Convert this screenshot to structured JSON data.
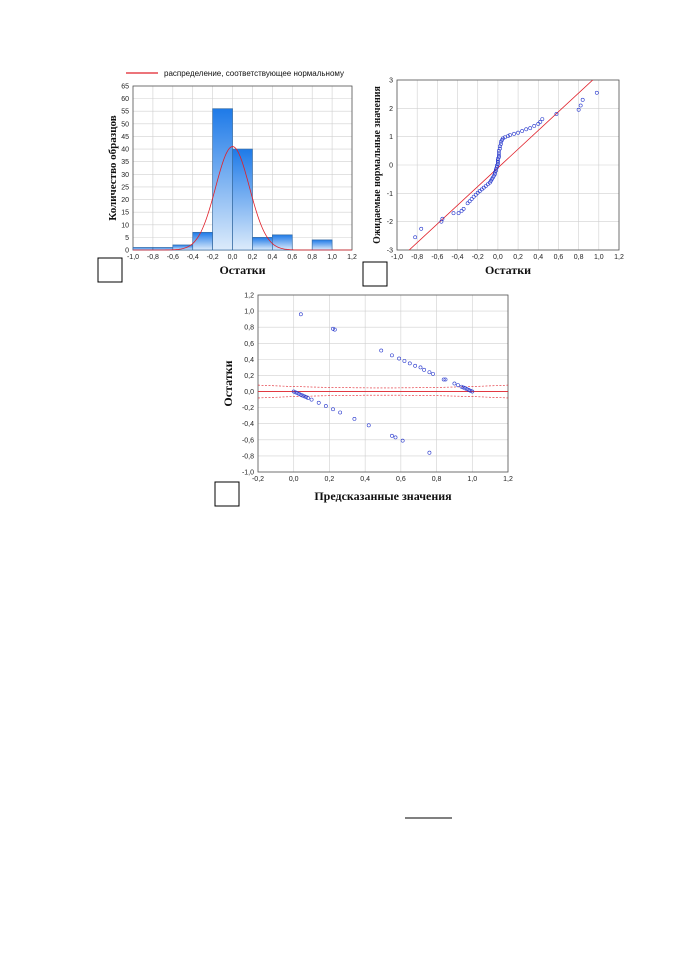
{
  "chart_data": [
    {
      "type": "bar",
      "legend_label": "распределение, соответствующее нормальному",
      "xlabel": "Остатки",
      "ylabel": "Количество образцов",
      "xlim": [
        -1.0,
        1.2
      ],
      "ylim": [
        0,
        65
      ],
      "xticks": [
        "-1,0",
        "-0,8",
        "-0,6",
        "-0,4",
        "-0,2",
        "0,0",
        "0,2",
        "0,4",
        "0,6",
        "0,8",
        "1,0",
        "1,2"
      ],
      "yticks": [
        "0",
        "5",
        "10",
        "15",
        "20",
        "25",
        "30",
        "35",
        "40",
        "45",
        "50",
        "55",
        "60",
        "65"
      ],
      "bins": [
        {
          "from": -1.0,
          "to": -0.8,
          "count": 1
        },
        {
          "from": -0.8,
          "to": -0.6,
          "count": 1
        },
        {
          "from": -0.6,
          "to": -0.4,
          "count": 2
        },
        {
          "from": -0.4,
          "to": -0.2,
          "count": 7
        },
        {
          "from": -0.2,
          "to": 0.0,
          "count": 56
        },
        {
          "from": 0.0,
          "to": 0.2,
          "count": 40
        },
        {
          "from": 0.2,
          "to": 0.4,
          "count": 5
        },
        {
          "from": 0.4,
          "to": 0.6,
          "count": 6
        },
        {
          "from": 0.6,
          "to": 0.8,
          "count": 0
        },
        {
          "from": 0.8,
          "to": 1.0,
          "count": 4
        }
      ],
      "normal_curve": {
        "mean": 0.0,
        "peak": 41,
        "sd": 0.17
      },
      "grid": true
    },
    {
      "type": "scatter",
      "xlabel": "Остатки",
      "ylabel": "Ожидаемые нормальные значения",
      "xlim": [
        -1.0,
        1.2
      ],
      "ylim": [
        -3,
        3
      ],
      "xticks": [
        "-1,0",
        "-0,8",
        "-0,6",
        "-0,4",
        "-0,2",
        "0,0",
        "0,2",
        "0,4",
        "0,6",
        "0,8",
        "1,0",
        "1,2"
      ],
      "yticks": [
        "-3",
        "-2",
        "-1",
        "0",
        "1",
        "2",
        "3"
      ],
      "reference_line": {
        "x1": -1.0,
        "y1": -3.4,
        "x2": 1.0,
        "y2": 3.2
      },
      "points": [
        [
          -0.82,
          -2.55
        ],
        [
          -0.76,
          -2.25
        ],
        [
          -0.56,
          -2.0
        ],
        [
          -0.55,
          -1.9
        ],
        [
          -0.44,
          -1.7
        ],
        [
          -0.39,
          -1.7
        ],
        [
          -0.36,
          -1.62
        ],
        [
          -0.34,
          -1.55
        ],
        [
          -0.3,
          -1.35
        ],
        [
          -0.28,
          -1.28
        ],
        [
          -0.26,
          -1.2
        ],
        [
          -0.24,
          -1.12
        ],
        [
          -0.22,
          -1.05
        ],
        [
          -0.2,
          -0.98
        ],
        [
          -0.18,
          -0.92
        ],
        [
          -0.16,
          -0.86
        ],
        [
          -0.14,
          -0.8
        ],
        [
          -0.12,
          -0.74
        ],
        [
          -0.1,
          -0.68
        ],
        [
          -0.08,
          -0.62
        ],
        [
          -0.07,
          -0.56
        ],
        [
          -0.06,
          -0.5
        ],
        [
          -0.05,
          -0.44
        ],
        [
          -0.04,
          -0.38
        ],
        [
          -0.03,
          -0.32
        ],
        [
          -0.03,
          -0.26
        ],
        [
          -0.02,
          -0.2
        ],
        [
          -0.02,
          -0.14
        ],
        [
          -0.01,
          -0.08
        ],
        [
          -0.01,
          -0.02
        ],
        [
          0.0,
          0.04
        ],
        [
          0.0,
          0.1
        ],
        [
          0.0,
          0.16
        ],
        [
          0.0,
          0.22
        ],
        [
          0.01,
          0.28
        ],
        [
          0.01,
          0.34
        ],
        [
          0.01,
          0.42
        ],
        [
          0.01,
          0.5
        ],
        [
          0.02,
          0.58
        ],
        [
          0.02,
          0.66
        ],
        [
          0.03,
          0.74
        ],
        [
          0.03,
          0.82
        ],
        [
          0.04,
          0.88
        ],
        [
          0.05,
          0.94
        ],
        [
          0.07,
          0.98
        ],
        [
          0.1,
          1.02
        ],
        [
          0.12,
          1.06
        ],
        [
          0.16,
          1.1
        ],
        [
          0.2,
          1.14
        ],
        [
          0.24,
          1.2
        ],
        [
          0.28,
          1.26
        ],
        [
          0.32,
          1.3
        ],
        [
          0.36,
          1.38
        ],
        [
          0.4,
          1.45
        ],
        [
          0.42,
          1.52
        ],
        [
          0.44,
          1.62
        ],
        [
          0.58,
          1.8
        ],
        [
          0.8,
          1.95
        ],
        [
          0.82,
          2.1
        ],
        [
          0.84,
          2.3
        ],
        [
          0.98,
          2.55
        ]
      ],
      "grid": true
    },
    {
      "type": "scatter",
      "xlabel": "Предсказанные значения",
      "ylabel": "Остатки",
      "xlim": [
        -0.2,
        1.2
      ],
      "ylim": [
        -1.0,
        1.2
      ],
      "xticks": [
        "-0,2",
        "0,0",
        "0,2",
        "0,4",
        "0,6",
        "0,8",
        "1,0",
        "1,2"
      ],
      "yticks": [
        "-1,0",
        "-0,8",
        "-0,6",
        "-0,4",
        "-0,2",
        "0,0",
        "0,2",
        "0,4",
        "0,6",
        "0,8",
        "1,0",
        "1,2"
      ],
      "points": [
        [
          0.04,
          0.96
        ],
        [
          0.22,
          0.78
        ],
        [
          0.23,
          0.77
        ],
        [
          0.49,
          0.51
        ],
        [
          0.55,
          0.45
        ],
        [
          0.59,
          0.41
        ],
        [
          0.62,
          0.38
        ],
        [
          0.65,
          0.35
        ],
        [
          0.68,
          0.32
        ],
        [
          0.71,
          0.3
        ],
        [
          0.73,
          0.27
        ],
        [
          0.76,
          0.24
        ],
        [
          0.78,
          0.22
        ],
        [
          0.84,
          0.15
        ],
        [
          0.85,
          0.15
        ],
        [
          0.9,
          0.1
        ],
        [
          0.92,
          0.08
        ],
        [
          0.94,
          0.06
        ],
        [
          0.95,
          0.05
        ],
        [
          0.96,
          0.04
        ],
        [
          0.97,
          0.03
        ],
        [
          0.98,
          0.02
        ],
        [
          0.99,
          0.01
        ],
        [
          1.0,
          0.0
        ],
        [
          0.0,
          0.0
        ],
        [
          0.01,
          -0.01
        ],
        [
          0.02,
          -0.02
        ],
        [
          0.03,
          -0.03
        ],
        [
          0.04,
          -0.04
        ],
        [
          0.05,
          -0.05
        ],
        [
          0.06,
          -0.06
        ],
        [
          0.07,
          -0.07
        ],
        [
          0.08,
          -0.08
        ],
        [
          0.1,
          -0.1
        ],
        [
          0.14,
          -0.14
        ],
        [
          0.18,
          -0.18
        ],
        [
          0.22,
          -0.22
        ],
        [
          0.26,
          -0.26
        ],
        [
          0.34,
          -0.34
        ],
        [
          0.42,
          -0.42
        ],
        [
          0.55,
          -0.55
        ],
        [
          0.57,
          -0.57
        ],
        [
          0.61,
          -0.61
        ],
        [
          0.76,
          -0.76
        ]
      ],
      "grid": true
    }
  ]
}
